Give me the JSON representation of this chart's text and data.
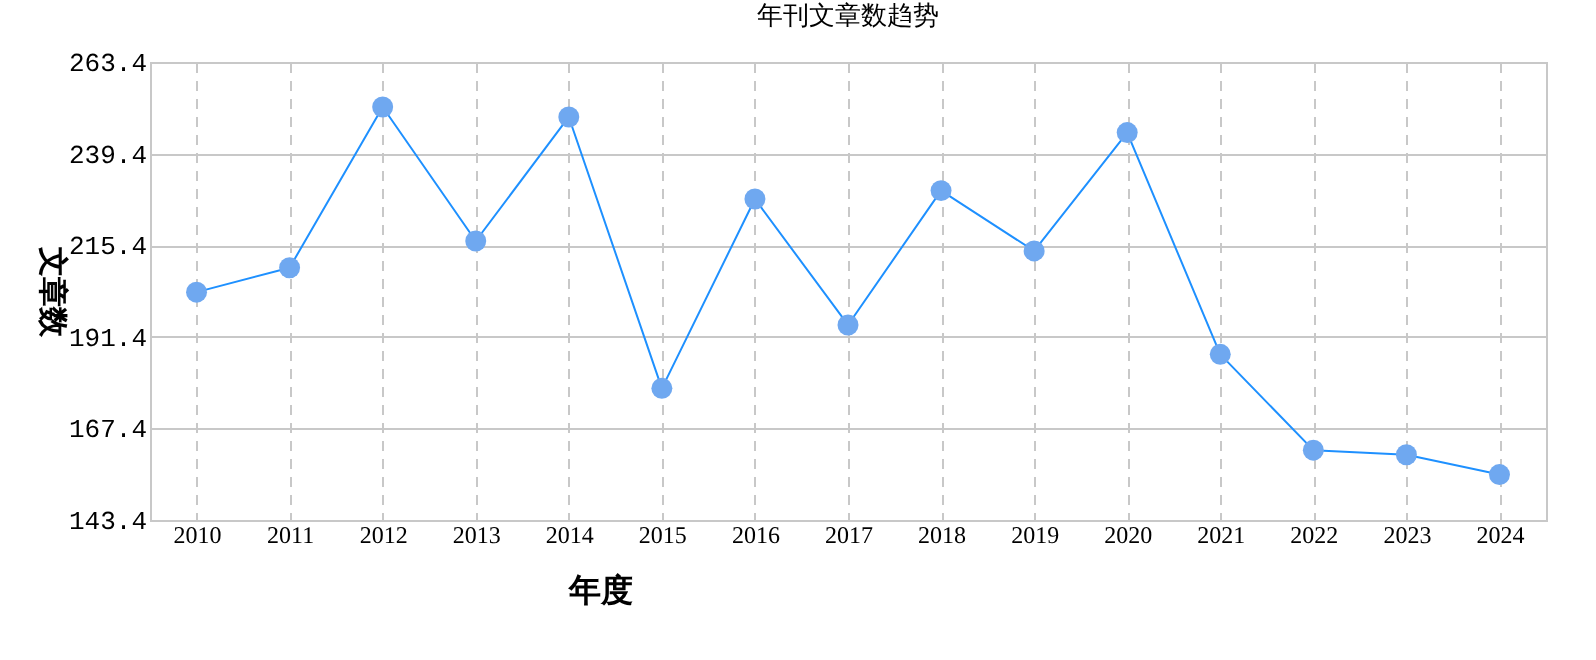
{
  "chart_data": {
    "type": "line",
    "title": "年刊文章数趋势",
    "xlabel": "年度",
    "ylabel": "文章数",
    "categories": [
      "2010",
      "2011",
      "2012",
      "2013",
      "2014",
      "2015",
      "2016",
      "2017",
      "2018",
      "2019",
      "2020",
      "2021",
      "2022",
      "2023",
      "2024"
    ],
    "series": [
      {
        "color": "#1e90ff",
        "values": [
          203.1,
          209.5,
          251.6,
          216.5,
          249.0,
          177.9,
          227.5,
          194.5,
          229.7,
          213.9,
          244.9,
          186.8,
          161.7,
          160.5,
          155.3
        ]
      }
    ],
    "ylim": [
      143.4,
      263.4
    ],
    "yticks": [
      143.4,
      167.4,
      191.4,
      215.4,
      239.4,
      263.4
    ],
    "grid": true,
    "marker": "circle",
    "line_style": "solid"
  }
}
